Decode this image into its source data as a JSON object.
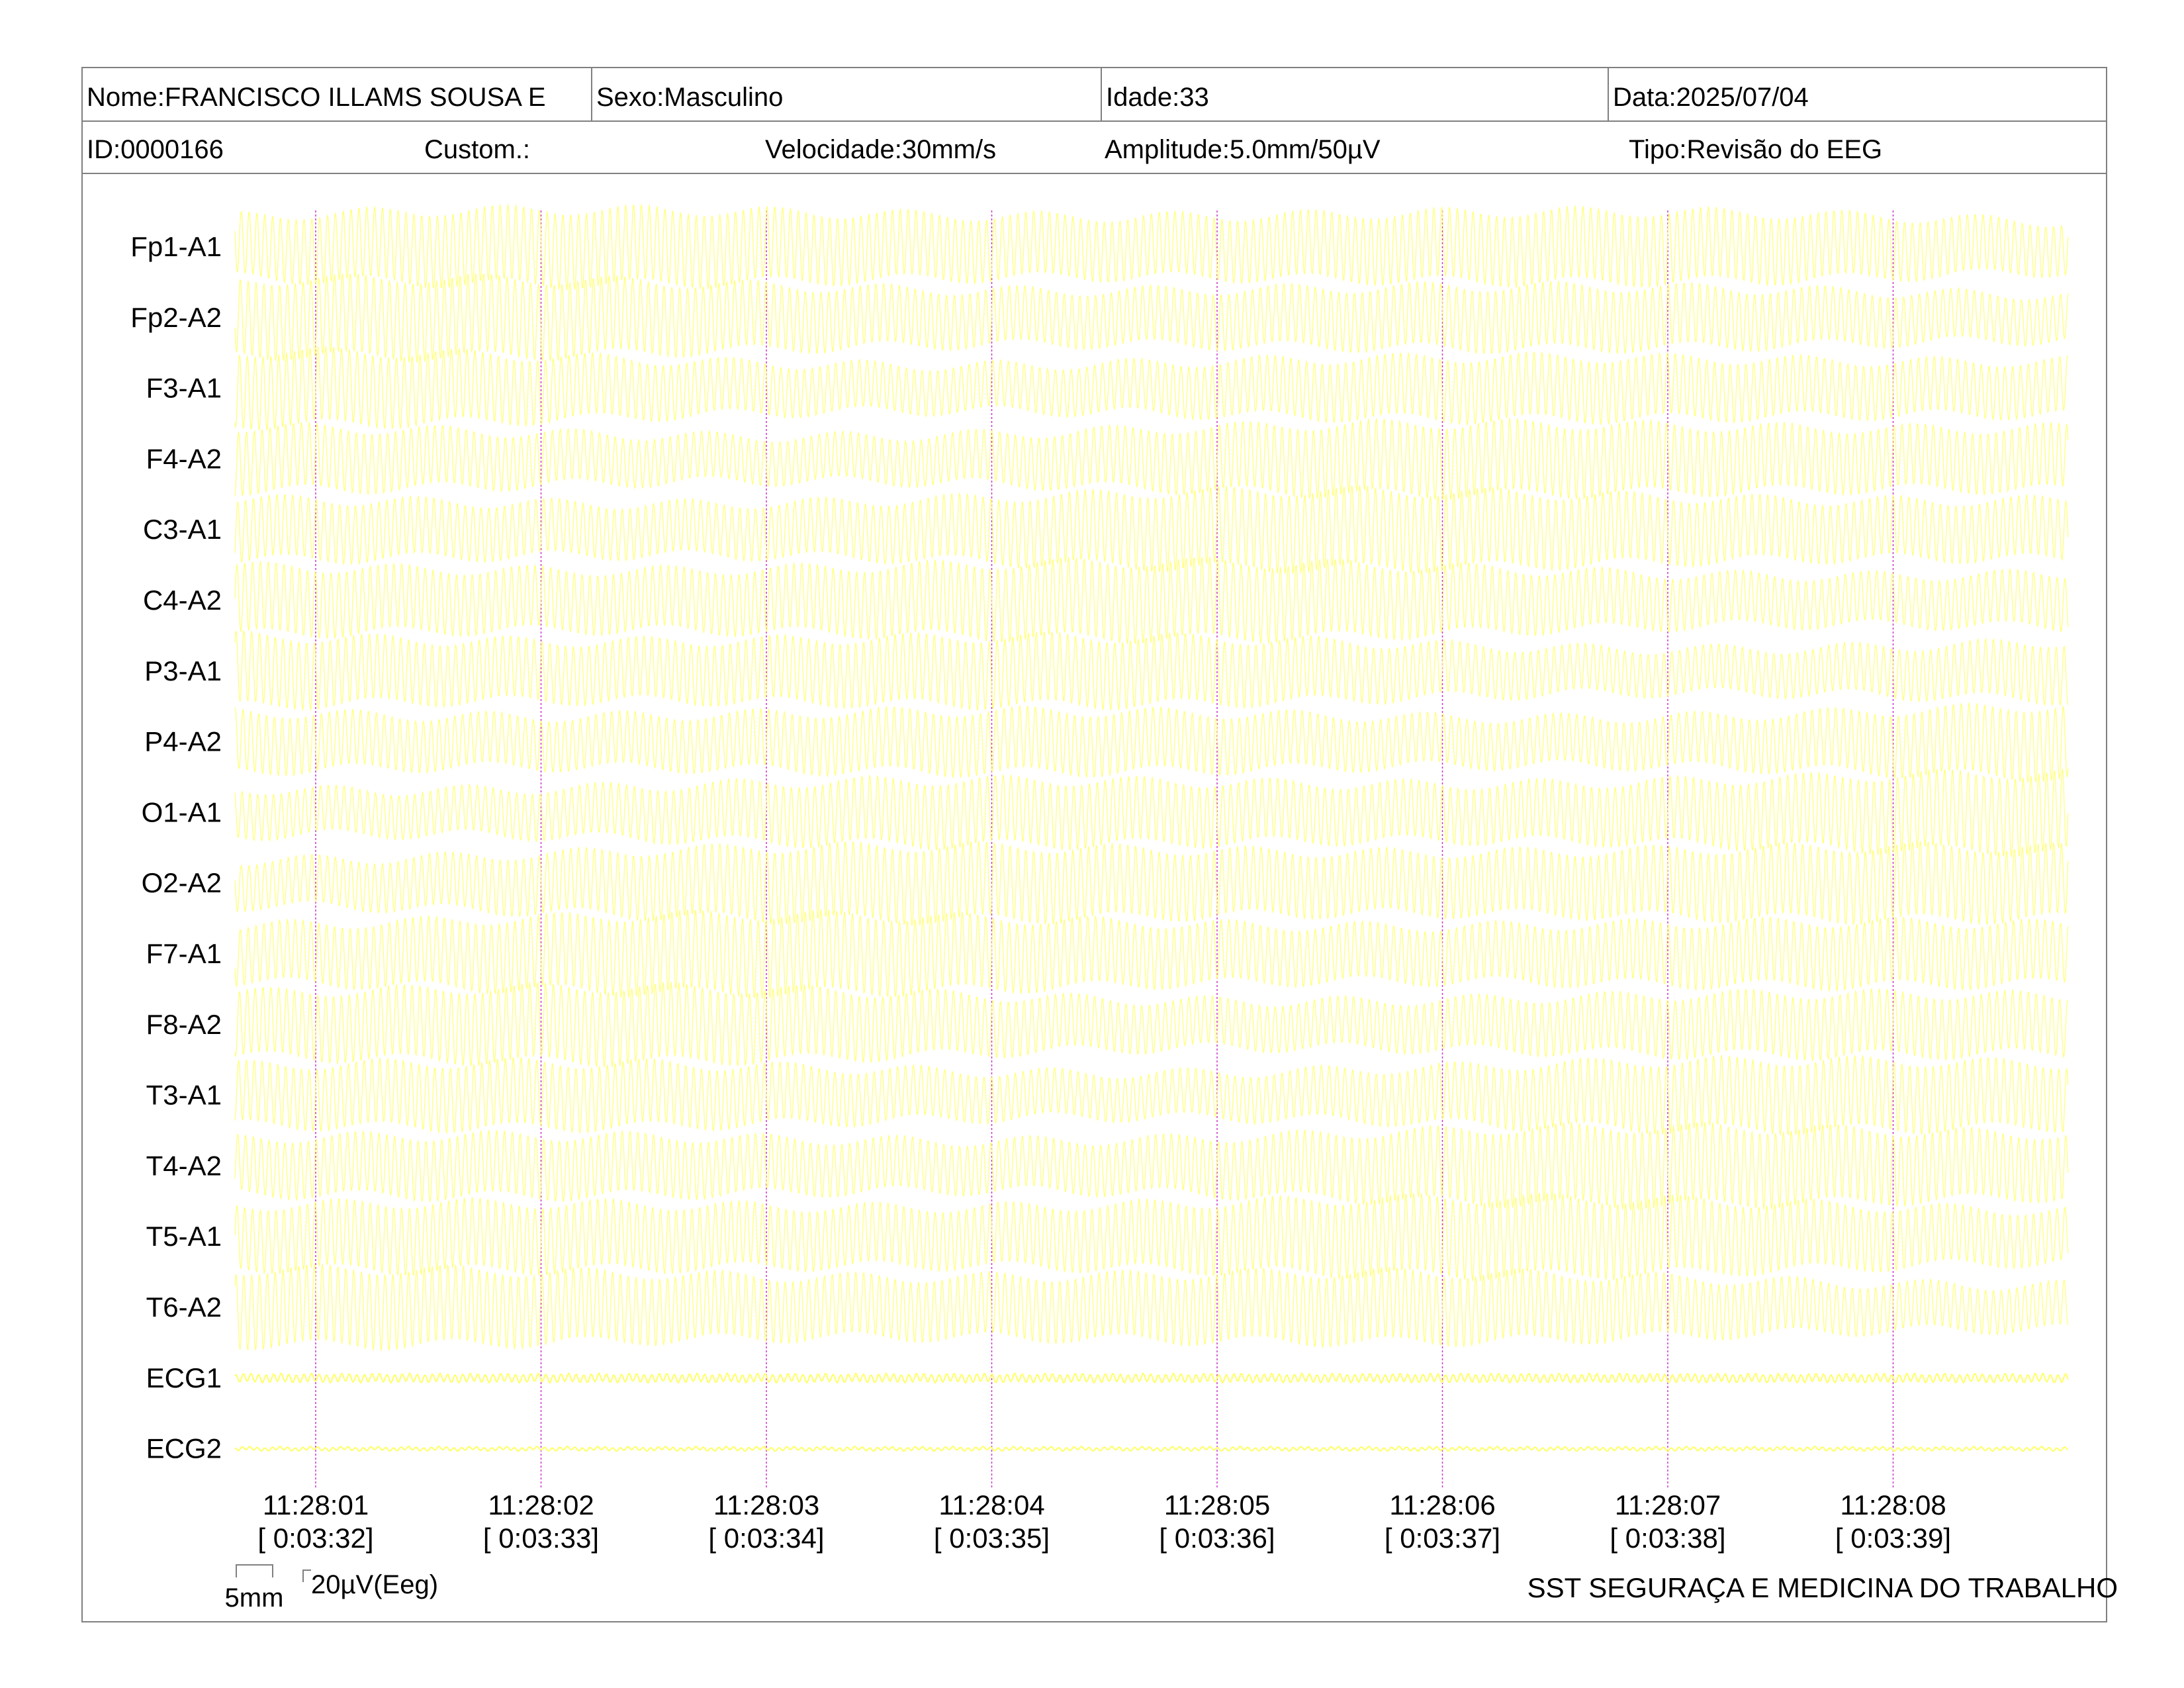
{
  "header": {
    "name": "Nome:FRANCISCO ILLAMS SOUSA E",
    "sex": "Sexo:Masculino",
    "age": "Idade:33",
    "date": "Data:2025/07/04",
    "id": "ID:0000166",
    "custom": "Custom.:",
    "speed": "Velocidade:30mm/s",
    "amplitude": "Amplitude:5.0mm/50µV",
    "type": "Tipo:Revisão do EEG"
  },
  "scale": {
    "time_label": "5mm",
    "amp_label": "20µV(Eeg)"
  },
  "footer": {
    "company": "SST SEGURAÇA E MEDICINA DO TRABALHO"
  },
  "colors": {
    "trace": "#ffff66",
    "marker": "#cc33cc",
    "border": "#808080"
  },
  "chart_data": {
    "type": "line",
    "title": "",
    "xlabel": "",
    "ylabel": "",
    "channels": [
      "Fp1-A1",
      "Fp2-A2",
      "F3-A1",
      "F4-A2",
      "C3-A1",
      "C4-A2",
      "P3-A1",
      "P4-A2",
      "O1-A1",
      "O2-A2",
      "F7-A1",
      "F8-A2",
      "T3-A1",
      "T4-A2",
      "T5-A1",
      "T6-A2",
      "ECG1",
      "ECG2"
    ],
    "time_ticks": [
      {
        "clock": "11:28:01",
        "elapsed": "[ 0:03:32]"
      },
      {
        "clock": "11:28:02",
        "elapsed": "[ 0:03:33]"
      },
      {
        "clock": "11:28:03",
        "elapsed": "[ 0:03:34]"
      },
      {
        "clock": "11:28:04",
        "elapsed": "[ 0:03:35]"
      },
      {
        "clock": "11:28:05",
        "elapsed": "[ 0:03:36]"
      },
      {
        "clock": "11:28:06",
        "elapsed": "[ 0:03:37]"
      },
      {
        "clock": "11:28:07",
        "elapsed": "[ 0:03:38]"
      },
      {
        "clock": "11:28:08",
        "elapsed": "[ 0:03:39]"
      }
    ],
    "duration_s": 8.1,
    "eeg_dominant_freq_hz": 60,
    "grid": false
  }
}
